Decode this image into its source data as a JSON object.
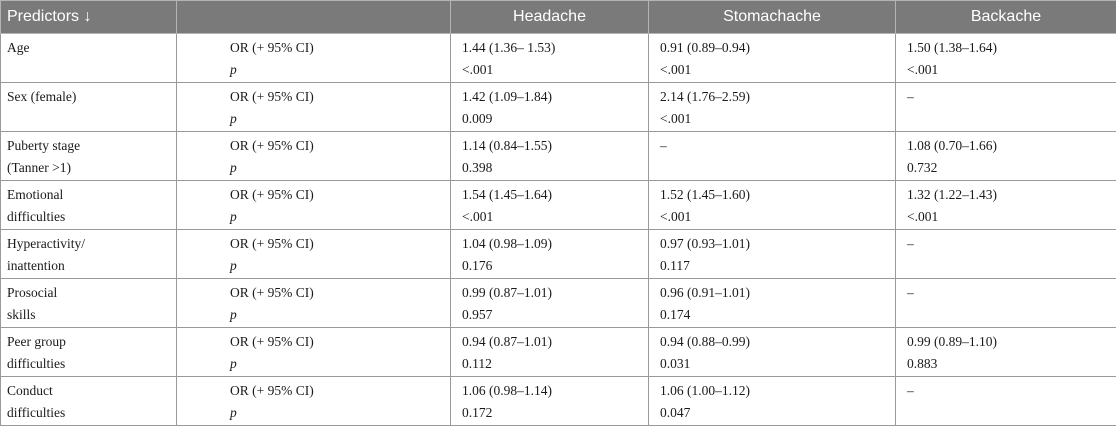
{
  "headers": {
    "predictors": "Predictors ↓",
    "blank": "",
    "col1": "Headache",
    "col2": "Stomachache",
    "col3": "Backache"
  },
  "stat_labels": {
    "or": "OR (+ 95% CI)",
    "p": "p"
  },
  "rows": [
    {
      "predictor": [
        "Age",
        ""
      ],
      "headache": [
        "1.44 (1.36– 1.53)",
        "<.001"
      ],
      "stomachache": [
        "0.91 (0.89–0.94)",
        "<.001"
      ],
      "backache": [
        "1.50 (1.38–1.64)",
        "<.001"
      ]
    },
    {
      "predictor": [
        "Sex (female)",
        ""
      ],
      "headache": [
        "1.42 (1.09–1.84)",
        "0.009"
      ],
      "stomachache": [
        "2.14 (1.76–2.59)",
        "<.001"
      ],
      "backache": [
        "–",
        ""
      ]
    },
    {
      "predictor": [
        "Puberty stage",
        "(Tanner >1)"
      ],
      "headache": [
        "1.14 (0.84–1.55)",
        "0.398"
      ],
      "stomachache": [
        "–",
        ""
      ],
      "backache": [
        "1.08 (0.70–1.66)",
        "0.732"
      ]
    },
    {
      "predictor": [
        "Emotional",
        "difficulties"
      ],
      "headache": [
        "1.54 (1.45–1.64)",
        "<.001"
      ],
      "stomachache": [
        "1.52 (1.45–1.60)",
        "<.001"
      ],
      "backache": [
        "1.32 (1.22–1.43)",
        "<.001"
      ]
    },
    {
      "predictor": [
        "Hyperactivity/",
        "inattention"
      ],
      "headache": [
        "1.04 (0.98–1.09)",
        "0.176"
      ],
      "stomachache": [
        "0.97 (0.93–1.01)",
        "0.117"
      ],
      "backache": [
        "–",
        ""
      ]
    },
    {
      "predictor": [
        "Prosocial",
        "skills"
      ],
      "headache": [
        "0.99 (0.87–1.01)",
        "0.957"
      ],
      "stomachache": [
        "0.96 (0.91–1.01)",
        "0.174"
      ],
      "backache": [
        "–",
        ""
      ]
    },
    {
      "predictor": [
        "Peer group",
        "difficulties"
      ],
      "headache": [
        "0.94 (0.87–1.01)",
        "0.112"
      ],
      "stomachache": [
        "0.94 (0.88–0.99)",
        "0.031"
      ],
      "backache": [
        "0.99 (0.89–1.10)",
        "0.883"
      ]
    },
    {
      "predictor": [
        "Conduct",
        "difficulties"
      ],
      "headache": [
        "1.06 (0.98–1.14)",
        "0.172"
      ],
      "stomachache": [
        "1.06 (1.00–1.12)",
        "0.047"
      ],
      "backache": [
        "–",
        ""
      ]
    }
  ]
}
